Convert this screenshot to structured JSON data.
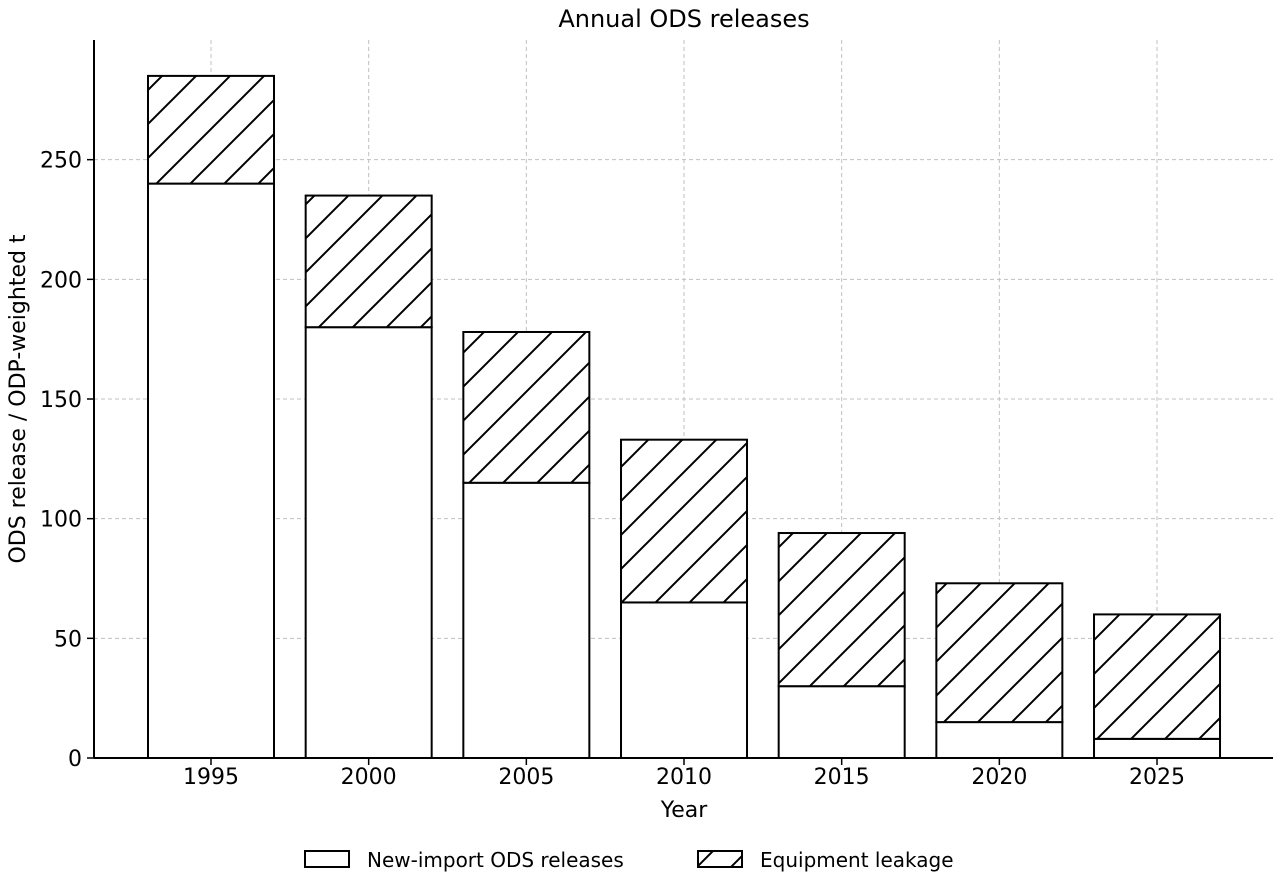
{
  "chart_data": {
    "type": "bar",
    "stacked": true,
    "title": "Annual ODS releases",
    "xlabel": "Year",
    "ylabel": "ODS release / ODP-weighted t",
    "categories": [
      "1995",
      "2000",
      "2005",
      "2010",
      "2015",
      "2020",
      "2025"
    ],
    "series": [
      {
        "name": "New-import ODS releases",
        "values": [
          240,
          180,
          115,
          65,
          30,
          15,
          8
        ],
        "pattern": "none"
      },
      {
        "name": "Equipment leakage",
        "values": [
          45,
          55,
          63,
          68,
          64,
          58,
          52
        ],
        "pattern": "diagonal-hatch"
      }
    ],
    "yticks": [
      0,
      50,
      100,
      150,
      200,
      250
    ],
    "ylim": [
      0,
      300
    ],
    "grid": true,
    "legend_position": "bottom-center",
    "colors": {
      "fill": "#ffffff",
      "edge": "#000000",
      "grid": "#c0c0c0"
    }
  }
}
